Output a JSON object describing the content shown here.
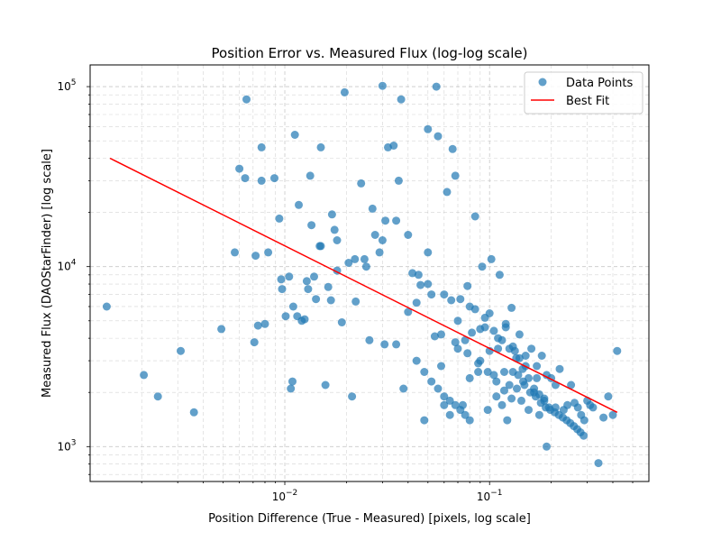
{
  "chart_data": {
    "type": "scatter",
    "title": "Position Error vs. Measured Flux (log-log scale)",
    "xlabel": "Position Difference (True - Measured) [pixels, log scale]",
    "ylabel": "Measured Flux (DAOStarFinder) [log scale]",
    "xscale": "log",
    "yscale": "log",
    "xlim": [
      0.00112,
      0.6
    ],
    "ylim": [
      640,
      132000
    ],
    "x_ticks": [
      {
        "value": 0.01,
        "base": "10",
        "exp": "−2"
      },
      {
        "value": 0.1,
        "base": "10",
        "exp": "−1"
      }
    ],
    "y_ticks": [
      {
        "value": 1000,
        "base": "10",
        "exp": "3"
      },
      {
        "value": 10000,
        "base": "10",
        "exp": "4"
      },
      {
        "value": 100000,
        "base": "10",
        "exp": "5"
      }
    ],
    "grid": true,
    "legend": {
      "position": "top-right",
      "entries": [
        "Data Points",
        "Best Fit"
      ]
    },
    "colors": {
      "points": "#1f77b4",
      "fit": "#ff0000",
      "grid": "#b0b0b0"
    },
    "series": [
      {
        "name": "Data Points",
        "kind": "scatter",
        "x": [
          0.00135,
          0.00205,
          0.0024,
          0.0031,
          0.0036,
          0.0049,
          0.0057,
          0.006,
          0.0064,
          0.0065,
          0.0071,
          0.0072,
          0.0074,
          0.0077,
          0.0077,
          0.008,
          0.0083,
          0.0089,
          0.0094,
          0.0096,
          0.0097,
          0.0101,
          0.0105,
          0.0107,
          0.0109,
          0.0112,
          0.0115,
          0.0117,
          0.0121,
          0.0125,
          0.0128,
          0.0133,
          0.0135,
          0.0139,
          0.0142,
          0.0148,
          0.015,
          0.0158,
          0.0163,
          0.0168,
          0.017,
          0.0175,
          0.018,
          0.019,
          0.0196,
          0.0205,
          0.0213,
          0.0222,
          0.0236,
          0.0245,
          0.0259,
          0.0268,
          0.0276,
          0.029,
          0.03,
          0.0307,
          0.031,
          0.0319,
          0.034,
          0.035,
          0.036,
          0.037,
          0.038,
          0.04,
          0.042,
          0.044,
          0.046,
          0.048,
          0.05,
          0.052,
          0.054,
          0.055,
          0.056,
          0.058,
          0.06,
          0.062,
          0.064,
          0.066,
          0.068,
          0.07,
          0.072,
          0.074,
          0.076,
          0.078,
          0.08,
          0.082,
          0.085,
          0.088,
          0.09,
          0.092,
          0.095,
          0.098,
          0.1,
          0.102,
          0.105,
          0.108,
          0.11,
          0.112,
          0.115,
          0.118,
          0.12,
          0.122,
          0.125,
          0.128,
          0.13,
          0.133,
          0.136,
          0.14,
          0.143,
          0.146,
          0.15,
          0.155,
          0.16,
          0.165,
          0.17,
          0.175,
          0.18,
          0.185,
          0.19,
          0.2,
          0.21,
          0.22,
          0.23,
          0.24,
          0.25,
          0.26,
          0.27,
          0.28,
          0.29,
          0.3,
          0.31,
          0.32,
          0.34,
          0.36,
          0.38,
          0.4,
          0.42,
          0.07,
          0.09,
          0.11,
          0.13,
          0.15,
          0.17,
          0.19,
          0.21,
          0.08,
          0.1,
          0.12,
          0.14,
          0.06,
          0.05,
          0.045,
          0.065,
          0.085,
          0.095,
          0.105,
          0.115,
          0.125,
          0.135,
          0.145,
          0.155,
          0.165,
          0.175,
          0.185,
          0.195,
          0.058,
          0.068,
          0.078,
          0.088,
          0.098,
          0.108,
          0.118,
          0.128,
          0.138,
          0.148,
          0.158,
          0.168,
          0.178,
          0.188,
          0.198,
          0.208,
          0.218,
          0.228,
          0.238,
          0.248,
          0.258,
          0.268,
          0.278,
          0.288,
          0.05,
          0.04,
          0.035,
          0.03,
          0.025,
          0.022,
          0.018,
          0.015,
          0.013,
          0.011,
          0.044,
          0.048,
          0.052,
          0.056,
          0.06,
          0.064,
          0.068,
          0.072,
          0.076,
          0.08
        ],
        "y": [
          6000,
          2500,
          1900,
          3400,
          1550,
          4500,
          12000,
          35000,
          31000,
          85000,
          3800,
          11500,
          4700,
          30000,
          46000,
          4800,
          12000,
          31000,
          18500,
          8500,
          7500,
          5300,
          8800,
          2100,
          2300,
          54000,
          5300,
          22000,
          5000,
          5100,
          8300,
          32000,
          17000,
          8800,
          6600,
          13000,
          46000,
          2200,
          7700,
          6500,
          19500,
          16000,
          14000,
          4900,
          93000,
          10500,
          1900,
          6400,
          29000,
          11000,
          3900,
          21000,
          15000,
          12000,
          101000,
          3700,
          18000,
          46000,
          47000,
          3700,
          30000,
          85000,
          2100,
          5600,
          9200,
          6300,
          7900,
          1400,
          58000,
          7000,
          4100,
          100000,
          53000,
          2800,
          1700,
          26000,
          1500,
          45000,
          32000,
          3500,
          6600,
          1700,
          3900,
          7800,
          2400,
          4300,
          19000,
          2600,
          3000,
          10000,
          4600,
          1600,
          3400,
          11000,
          2500,
          1900,
          3500,
          9000,
          1700,
          2600,
          4600,
          1400,
          2200,
          5900,
          2600,
          3400,
          2100,
          3100,
          1800,
          2300,
          2800,
          1600,
          3500,
          2000,
          2400,
          1500,
          3200,
          1850,
          1000,
          2400,
          1650,
          2700,
          1600,
          1700,
          2200,
          1750,
          1650,
          1500,
          1400,
          1800,
          1700,
          1650,
          810,
          1450,
          1900,
          1500,
          3400,
          5000,
          4500,
          4000,
          3600,
          3200,
          2800,
          2500,
          2200,
          6000,
          5500,
          4800,
          4200,
          7000,
          8000,
          9000,
          6500,
          5800,
          5200,
          4400,
          3900,
          3500,
          3100,
          2700,
          2400,
          2100,
          1950,
          1800,
          1650,
          4200,
          3800,
          3300,
          2900,
          2600,
          2300,
          2050,
          1850,
          2500,
          2200,
          2000,
          1900,
          1750,
          1650,
          1600,
          1550,
          1500,
          1450,
          1400,
          1350,
          1300,
          1250,
          1200,
          1150,
          12000,
          15000,
          18000,
          14000,
          10000,
          11000,
          9500,
          13000,
          7500,
          6000,
          3000,
          2600,
          2300,
          2100,
          1900,
          1800,
          1700,
          1600,
          1500,
          1400
        ]
      },
      {
        "name": "Best Fit",
        "kind": "line",
        "x": [
          0.0014,
          0.42
        ],
        "y": [
          40000,
          1550
        ]
      }
    ]
  }
}
